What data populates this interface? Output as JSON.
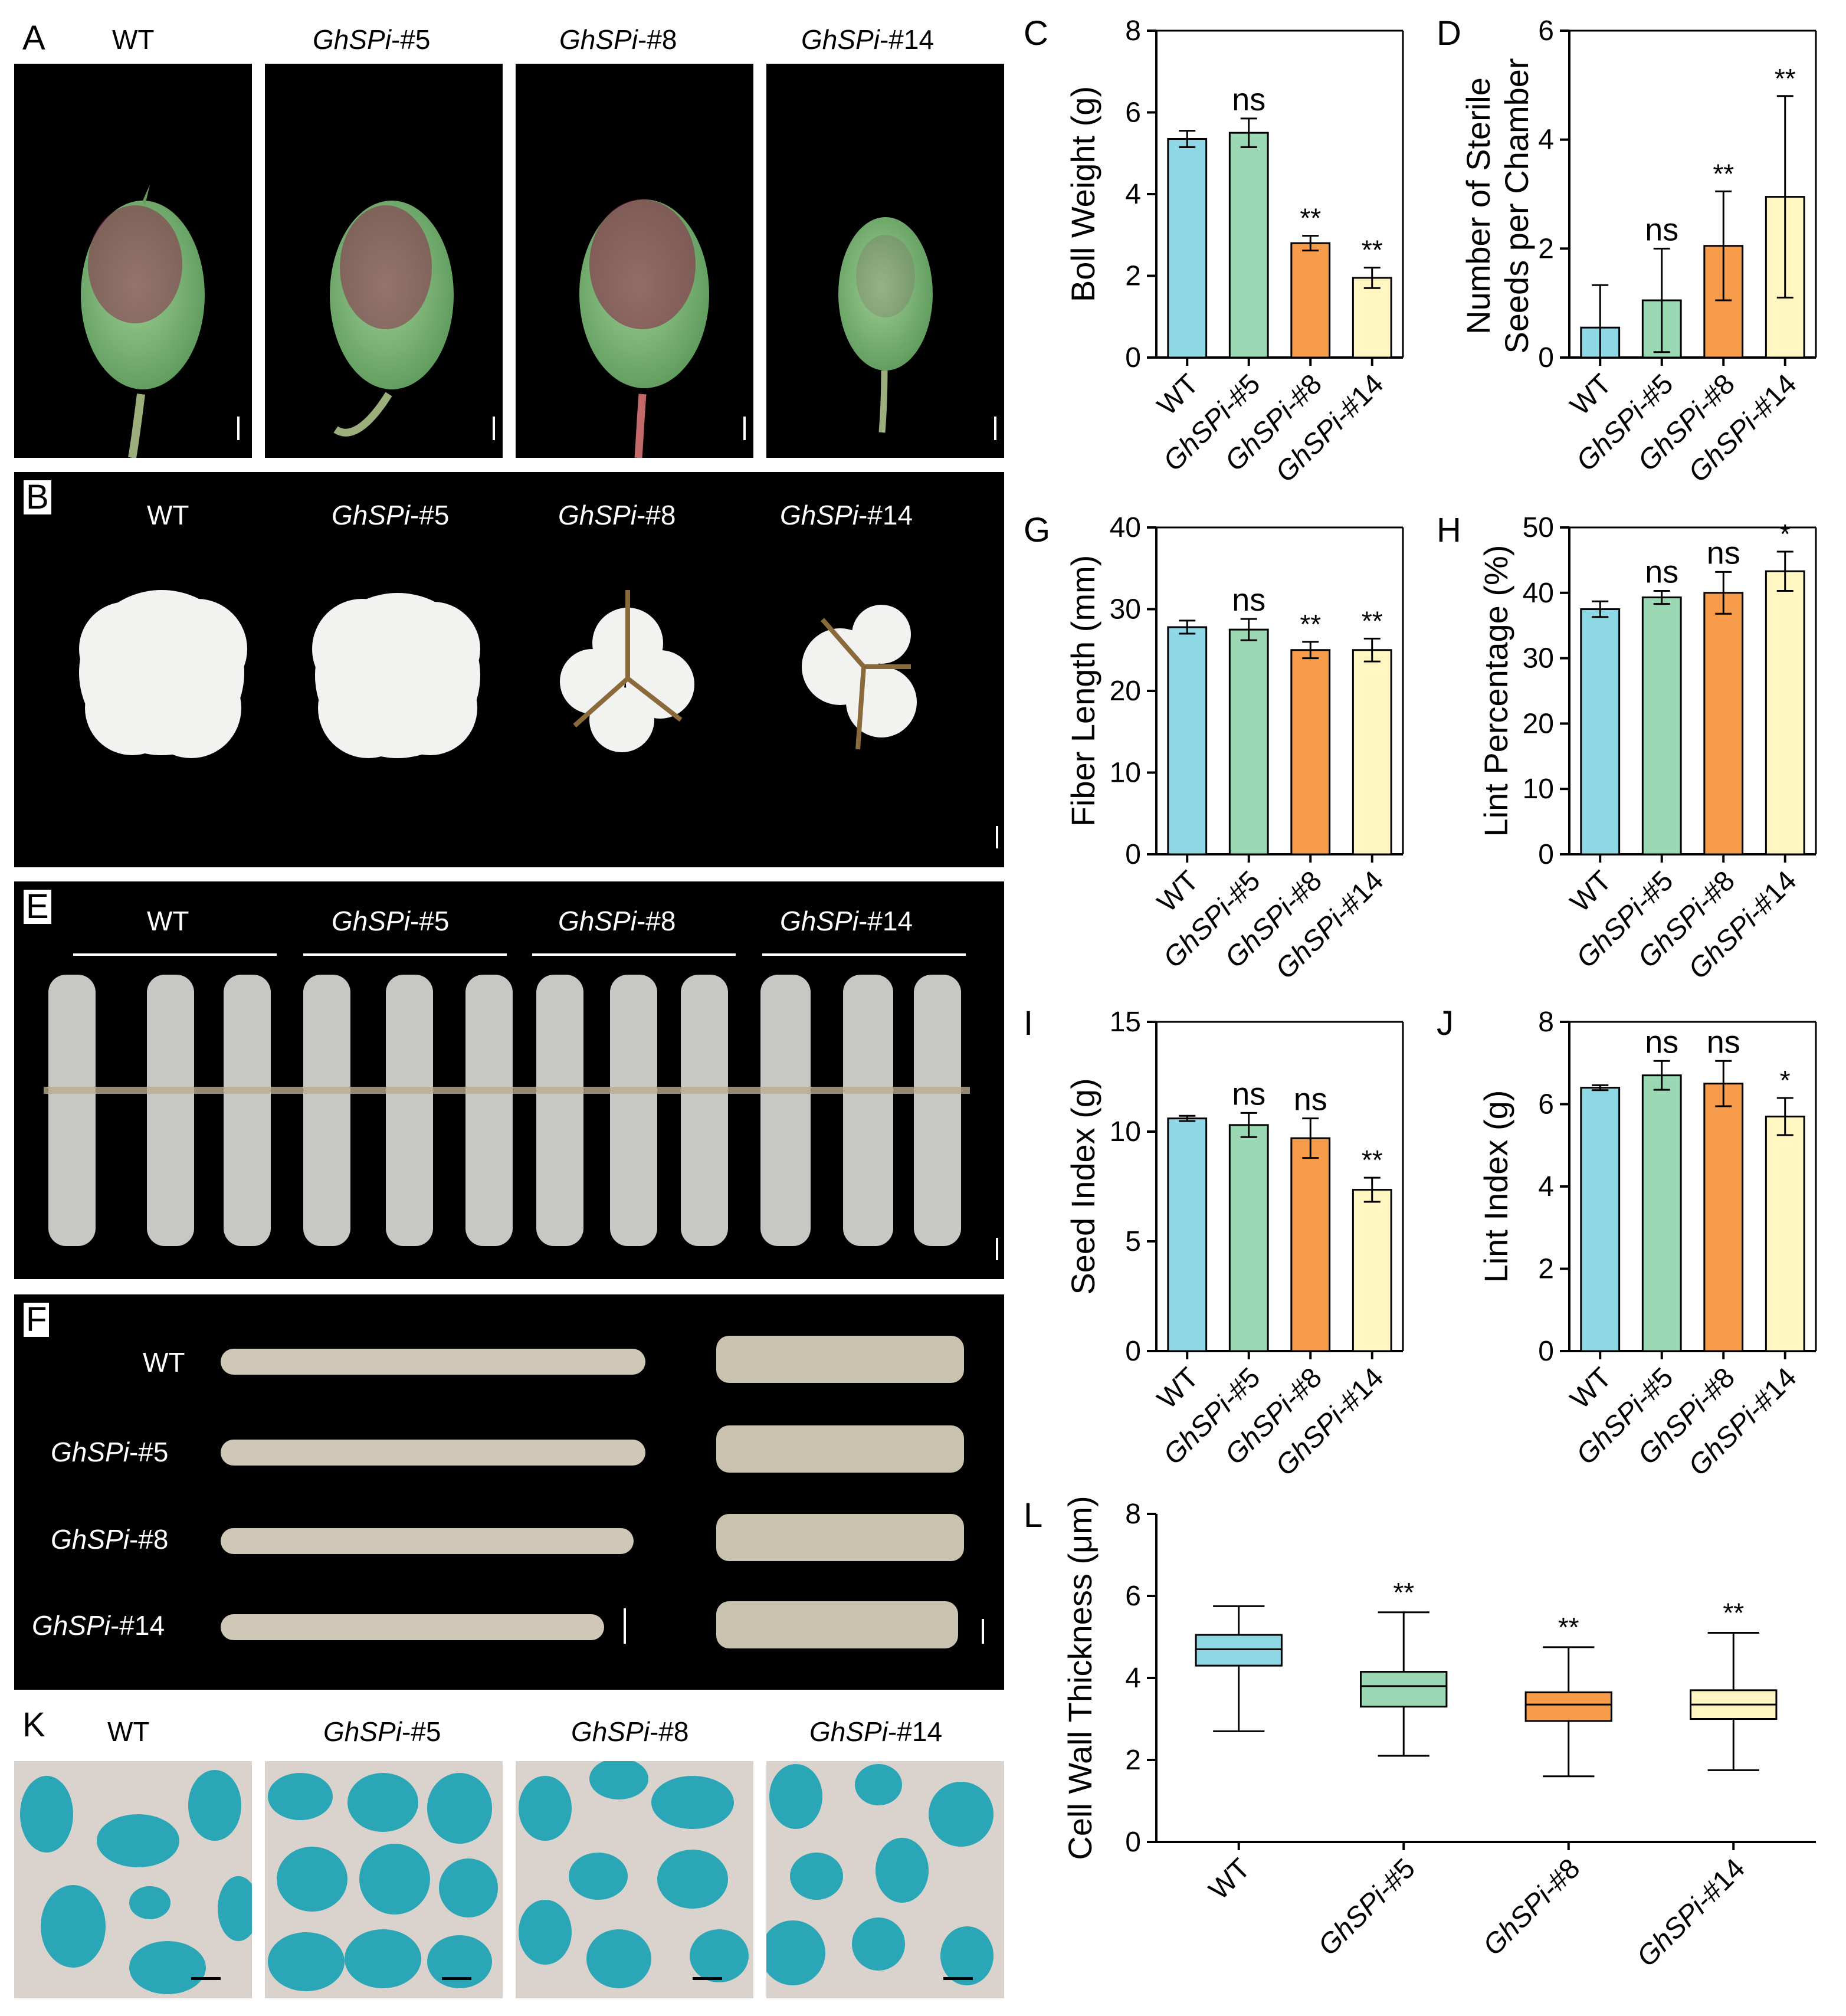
{
  "panel_letters": {
    "A": "A",
    "B": "B",
    "C": "C",
    "D": "D",
    "E": "E",
    "F": "F",
    "G": "G",
    "H": "H",
    "I": "I",
    "J": "J",
    "K": "K",
    "L": "L"
  },
  "genotypes": [
    {
      "prefix": "",
      "italic": "",
      "suffix": "WT"
    },
    {
      "prefix": "",
      "italic": "GhSPi",
      "suffix": "-#5"
    },
    {
      "prefix": "",
      "italic": "GhSPi",
      "suffix": "-#8"
    },
    {
      "prefix": "",
      "italic": "GhSPi",
      "suffix": "-#14"
    }
  ],
  "colors": {
    "wt": "#8ed8e6",
    "l5": "#9ad8b4",
    "l8": "#f79c4a",
    "l14": "#fff6c2",
    "photo_bg": "#000000",
    "stain": "#2aa6b6",
    "k_bg": "#d9d2cd"
  },
  "chart_data": [
    {
      "panel": "C",
      "type": "bar",
      "categories": [
        "WT",
        "GhSPi-#5",
        "GhSPi-#8",
        "GhSPi-#14"
      ],
      "values": [
        5.35,
        5.5,
        2.8,
        1.95
      ],
      "errors": [
        0.2,
        0.35,
        0.18,
        0.25
      ],
      "significance": [
        "",
        "ns",
        "**",
        "**"
      ],
      "ylabel": "Boll Weight (g)",
      "ylim": [
        0,
        8
      ],
      "yticks": [
        0,
        2,
        4,
        6,
        8
      ]
    },
    {
      "panel": "D",
      "type": "bar",
      "categories": [
        "WT",
        "GhSPi-#5",
        "GhSPi-#8",
        "GhSPi-#14"
      ],
      "values": [
        0.55,
        1.05,
        2.05,
        2.95
      ],
      "errors": [
        0.78,
        0.95,
        1.0,
        1.85
      ],
      "significance": [
        "",
        "ns",
        "**",
        "**"
      ],
      "ylabel": "Number of Sterile Seeds per Chamber",
      "ylim": [
        0,
        6
      ],
      "yticks": [
        0,
        2,
        4,
        6
      ]
    },
    {
      "panel": "G",
      "type": "bar",
      "categories": [
        "WT",
        "GhSPi-#5",
        "GhSPi-#8",
        "GhSPi-#14"
      ],
      "values": [
        27.8,
        27.5,
        25.0,
        25.0
      ],
      "errors": [
        0.8,
        1.3,
        1.0,
        1.4
      ],
      "significance": [
        "",
        "ns",
        "**",
        "**"
      ],
      "ylabel": "Fiber Length (mm)",
      "ylim": [
        0,
        40
      ],
      "yticks": [
        0,
        10,
        20,
        30,
        40
      ]
    },
    {
      "panel": "H",
      "type": "bar",
      "categories": [
        "WT",
        "GhSPi-#5",
        "GhSPi-#8",
        "GhSPi-#14"
      ],
      "values": [
        37.5,
        39.3,
        40.0,
        43.3
      ],
      "errors": [
        1.2,
        1.0,
        3.2,
        3.0
      ],
      "significance": [
        "",
        "ns",
        "ns",
        "*"
      ],
      "ylabel": "Lint Percentage (%)",
      "ylim": [
        0,
        50
      ],
      "yticks": [
        0,
        10,
        20,
        30,
        40,
        50
      ]
    },
    {
      "panel": "I",
      "type": "bar",
      "categories": [
        "WT",
        "GhSPi-#5",
        "GhSPi-#8",
        "GhSPi-#14"
      ],
      "values": [
        10.6,
        10.3,
        9.7,
        7.35
      ],
      "errors": [
        0.12,
        0.55,
        0.9,
        0.55
      ],
      "significance": [
        "",
        "ns",
        "ns",
        "**"
      ],
      "ylabel": "Seed Index (g)",
      "ylim": [
        0,
        15
      ],
      "yticks": [
        0,
        5,
        10,
        15
      ]
    },
    {
      "panel": "J",
      "type": "bar",
      "categories": [
        "WT",
        "GhSPi-#5",
        "GhSPi-#8",
        "GhSPi-#14"
      ],
      "values": [
        6.4,
        6.7,
        6.5,
        5.7
      ],
      "errors": [
        0.06,
        0.35,
        0.55,
        0.45
      ],
      "significance": [
        "",
        "ns",
        "ns",
        "*"
      ],
      "ylabel": "Lint Index (g)",
      "ylim": [
        0,
        8
      ],
      "yticks": [
        0,
        2,
        4,
        6,
        8
      ]
    },
    {
      "panel": "L",
      "type": "box",
      "categories": [
        "WT",
        "GhSPi-#5",
        "GhSPi-#8",
        "GhSPi-#14"
      ],
      "boxes": [
        {
          "min": 2.7,
          "q1": 4.3,
          "median": 4.7,
          "q3": 5.05,
          "max": 5.75
        },
        {
          "min": 2.1,
          "q1": 3.3,
          "median": 3.8,
          "q3": 4.15,
          "max": 5.6
        },
        {
          "min": 1.6,
          "q1": 2.95,
          "median": 3.35,
          "q3": 3.65,
          "max": 4.75
        },
        {
          "min": 1.75,
          "q1": 3.0,
          "median": 3.35,
          "q3": 3.7,
          "max": 5.1
        }
      ],
      "significance": [
        "",
        "**",
        "**",
        "**"
      ],
      "ylabel": "Cell Wall Thickness (μm)",
      "ylim": [
        0,
        8
      ],
      "yticks": [
        0,
        2,
        4,
        6,
        8
      ]
    }
  ]
}
